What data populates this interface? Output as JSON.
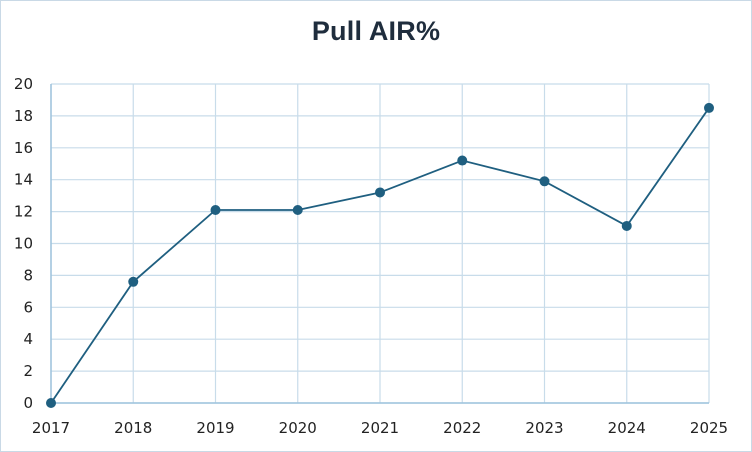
{
  "chart_data": {
    "type": "line",
    "title": "Pull AIR%",
    "xlabel": "",
    "ylabel": "",
    "x": [
      "2017",
      "2018",
      "2019",
      "2020",
      "2021",
      "2022",
      "2023",
      "2024",
      "2025"
    ],
    "series": [
      {
        "values": [
          0,
          7.6,
          12.1,
          12.1,
          13.2,
          15.2,
          13.9,
          11.1,
          18.5
        ]
      }
    ],
    "ylim": [
      0,
      20
    ],
    "yticks": [
      "0",
      "2",
      "4",
      "6",
      "8",
      "10",
      "12",
      "14",
      "16",
      "18",
      "20"
    ],
    "grid": true,
    "legend": "none",
    "colors": {
      "line": "#1f5f80",
      "marker": "#1f5f80",
      "grid": "#c8dcea",
      "axis": "#9ec3dd"
    }
  }
}
